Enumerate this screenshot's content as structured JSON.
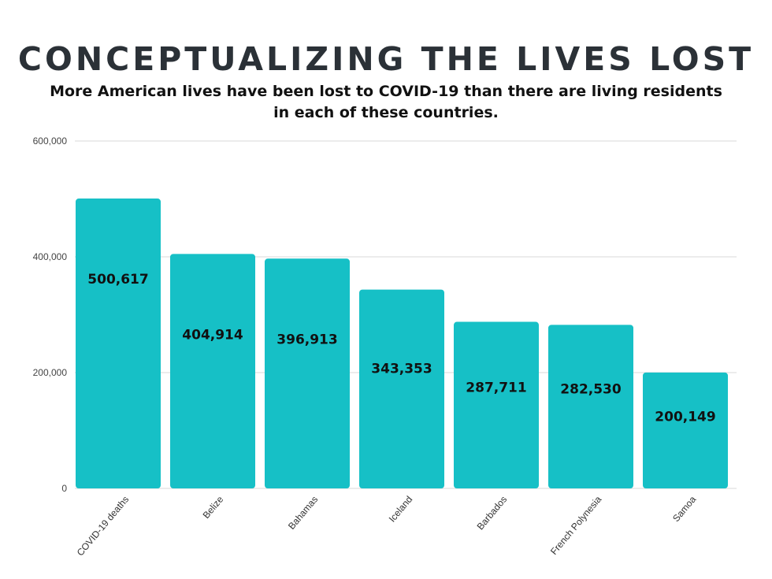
{
  "chart_data": {
    "type": "bar",
    "title": "CONCEPTUALIZING THE LIVES LOST",
    "subtitle_line1": "More American lives have been lost to COVID-19 than there are living residents",
    "subtitle_line2": "in each of these countries.",
    "categories": [
      "COVID-19 deaths",
      "Belize",
      "Bahamas",
      "Iceland",
      "Barbados",
      "French Polynesia",
      "Samoa"
    ],
    "values": [
      500617,
      404914,
      396913,
      343353,
      287711,
      282530,
      200149
    ],
    "value_labels": [
      "500,617",
      "404,914",
      "396,913",
      "343,353",
      "287,711",
      "282,530",
      "200,149"
    ],
    "yticks": [
      0,
      200000,
      400000,
      600000
    ],
    "ytick_labels": [
      "0",
      "200,000",
      "400,000",
      "600,000"
    ],
    "ylim": [
      0,
      600000
    ],
    "xlabel": "",
    "ylabel": "",
    "grid": true,
    "legend": "none",
    "colors": {
      "bar": "#16c0c6",
      "grid": "#d9d9d9",
      "title": "#2b3137"
    }
  }
}
